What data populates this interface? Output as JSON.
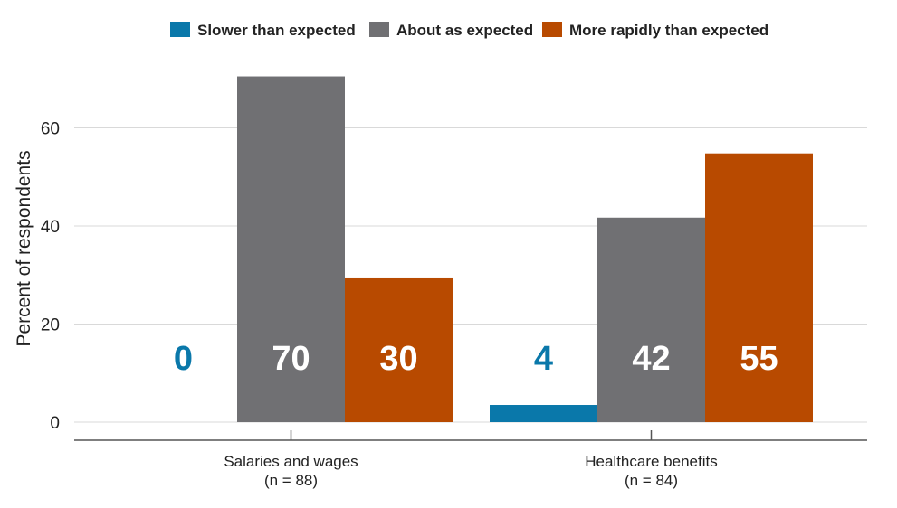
{
  "chart_data": {
    "type": "bar",
    "title": "",
    "xlabel": "",
    "ylabel": "Percent of respondents",
    "ylim": [
      0,
      75
    ],
    "yticks": [
      0,
      20,
      40,
      60
    ],
    "grid": true,
    "legend_position": "top-center",
    "categories": [
      {
        "label": "Salaries and wages",
        "sublabel": "(n = 88)"
      },
      {
        "label": "Healthcare benefits",
        "sublabel": "(n = 84)"
      }
    ],
    "series": [
      {
        "name": "Slower than expected",
        "color": "#0a78aa",
        "label_color": "#0a78aa",
        "values": [
          0,
          3.5
        ],
        "data_labels": [
          "0",
          "4"
        ]
      },
      {
        "name": "About as expected",
        "color": "#707073",
        "label_color": "#ffffff",
        "values": [
          70.5,
          41.7
        ],
        "data_labels": [
          "70",
          "42"
        ]
      },
      {
        "name": "More rapidly than expected",
        "color": "#b84a00",
        "label_color": "#ffffff",
        "values": [
          29.5,
          54.8
        ],
        "data_labels": [
          "30",
          "55"
        ]
      }
    ]
  }
}
